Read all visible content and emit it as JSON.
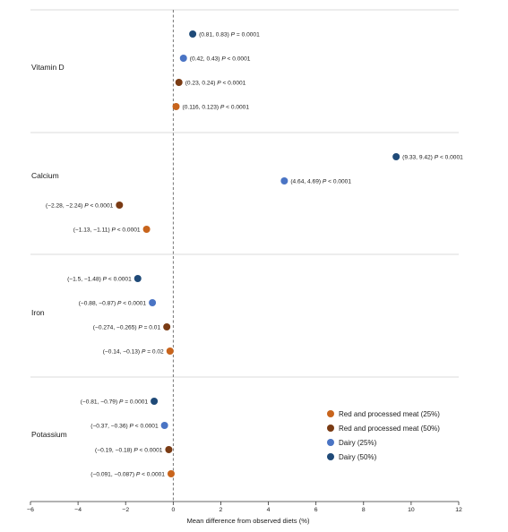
{
  "chart_data": {
    "type": "scatter",
    "xlabel": "Mean difference from observed diets (%)",
    "xlim": [
      -6,
      12
    ],
    "x_ticks": [
      "−6",
      "−4",
      "−2",
      "0",
      "2",
      "4",
      "6",
      "8",
      "10",
      "12"
    ],
    "legend_position": "bottom-right",
    "series": [
      {
        "name": "Red and processed meat (25%)",
        "color": "#c8641c"
      },
      {
        "name": "Red and processed meat (50%)",
        "color": "#7a3b14"
      },
      {
        "name": "Dairy (25%)",
        "color": "#4a74c4"
      },
      {
        "name": "Dairy (50%)",
        "color": "#1f4a78"
      }
    ],
    "groups": [
      {
        "label": "Vitamin D",
        "points": [
          {
            "series": 3,
            "x": 0.82,
            "pre": "(0.81, 0.83) ",
            "p": "P",
            "post": " = 0.0001"
          },
          {
            "series": 2,
            "x": 0.43,
            "pre": "(0.42, 0.43) ",
            "p": "P",
            "post": " < 0.0001"
          },
          {
            "series": 1,
            "x": 0.24,
            "pre": "(0.23, 0.24) ",
            "p": "P",
            "post": " < 0.0001"
          },
          {
            "series": 0,
            "x": 0.12,
            "pre": "(0.116, 0.123) ",
            "p": "P",
            "post": " < 0.0001"
          }
        ]
      },
      {
        "label": "Calcium",
        "points": [
          {
            "series": 3,
            "x": 9.37,
            "pre": "(9.33, 9.42) ",
            "p": "P",
            "post": " < 0.0001"
          },
          {
            "series": 2,
            "x": 4.67,
            "pre": "(4.64, 4.69) ",
            "p": "P",
            "post": " < 0.0001"
          },
          {
            "series": 1,
            "x": -2.26,
            "pre": "(−2.28, −2.24) ",
            "p": "P",
            "post": " < 0.0001"
          },
          {
            "series": 0,
            "x": -1.12,
            "pre": "(−1.13, −1.11) ",
            "p": "P",
            "post": " < 0.0001"
          }
        ]
      },
      {
        "label": "Iron",
        "points": [
          {
            "series": 3,
            "x": -1.49,
            "pre": "(−1.5, −1.48) ",
            "p": "P",
            "post": " < 0.0001"
          },
          {
            "series": 2,
            "x": -0.875,
            "pre": "(−0.88, −0.87) ",
            "p": "P",
            "post": " < 0.0001"
          },
          {
            "series": 1,
            "x": -0.27,
            "pre": "(−0.274, −0.265) ",
            "p": "P",
            "post": " = 0.01"
          },
          {
            "series": 0,
            "x": -0.135,
            "pre": "(−0.14, −0.13) ",
            "p": "P",
            "post": " = 0.02"
          }
        ]
      },
      {
        "label": "Potassium",
        "points": [
          {
            "series": 3,
            "x": -0.8,
            "pre": "(−0.81, −0.79) ",
            "p": "P",
            "post": " = 0.0001"
          },
          {
            "series": 2,
            "x": -0.365,
            "pre": "(−0.37, −0.36) ",
            "p": "P",
            "post": " < 0.0001"
          },
          {
            "series": 1,
            "x": -0.185,
            "pre": "(−0.19, −0.18) ",
            "p": "P",
            "post": " < 0.0001"
          },
          {
            "series": 0,
            "x": -0.089,
            "pre": "(−0.091, −0.087) ",
            "p": "P",
            "post": " < 0.0001"
          }
        ]
      }
    ]
  }
}
